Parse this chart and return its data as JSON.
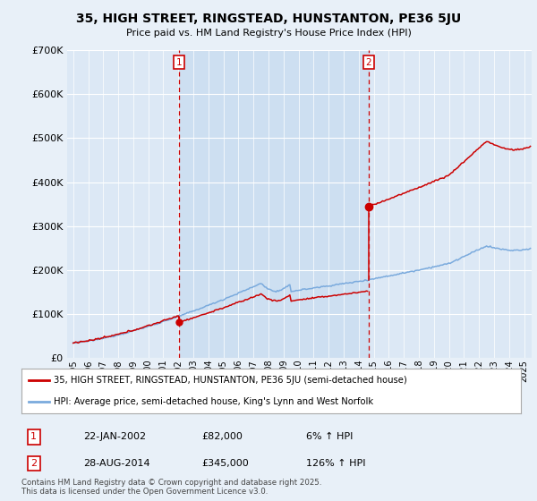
{
  "title": "35, HIGH STREET, RINGSTEAD, HUNSTANTON, PE36 5JU",
  "subtitle": "Price paid vs. HM Land Registry's House Price Index (HPI)",
  "ylim": [
    0,
    700000
  ],
  "yticks": [
    0,
    100000,
    200000,
    300000,
    400000,
    500000,
    600000,
    700000
  ],
  "ytick_labels": [
    "£0",
    "£100K",
    "£200K",
    "£300K",
    "£400K",
    "£500K",
    "£600K",
    "£700K"
  ],
  "xlim_start": 1994.6,
  "xlim_end": 2025.5,
  "background_color": "#e8f0f8",
  "plot_bg_color": "#dce8f5",
  "shade_color": "#c8dcf0",
  "grid_color": "#ffffff",
  "title_color": "#000000",
  "line_red_color": "#cc0000",
  "line_blue_color": "#7aaadd",
  "sale1_date_num": 2002.055,
  "sale1_price": 82000,
  "sale1_label": "1",
  "sale1_date_str": "22-JAN-2002",
  "sale1_price_str": "£82,000",
  "sale1_hpi_str": "6% ↑ HPI",
  "sale2_date_num": 2014.655,
  "sale2_price": 345000,
  "sale2_label": "2",
  "sale2_date_str": "28-AUG-2014",
  "sale2_price_str": "£345,000",
  "sale2_hpi_str": "126% ↑ HPI",
  "legend_label_red": "35, HIGH STREET, RINGSTEAD, HUNSTANTON, PE36 5JU (semi-detached house)",
  "legend_label_blue": "HPI: Average price, semi-detached house, King's Lynn and West Norfolk",
  "footer_text": "Contains HM Land Registry data © Crown copyright and database right 2025.\nThis data is licensed under the Open Government Licence v3.0."
}
